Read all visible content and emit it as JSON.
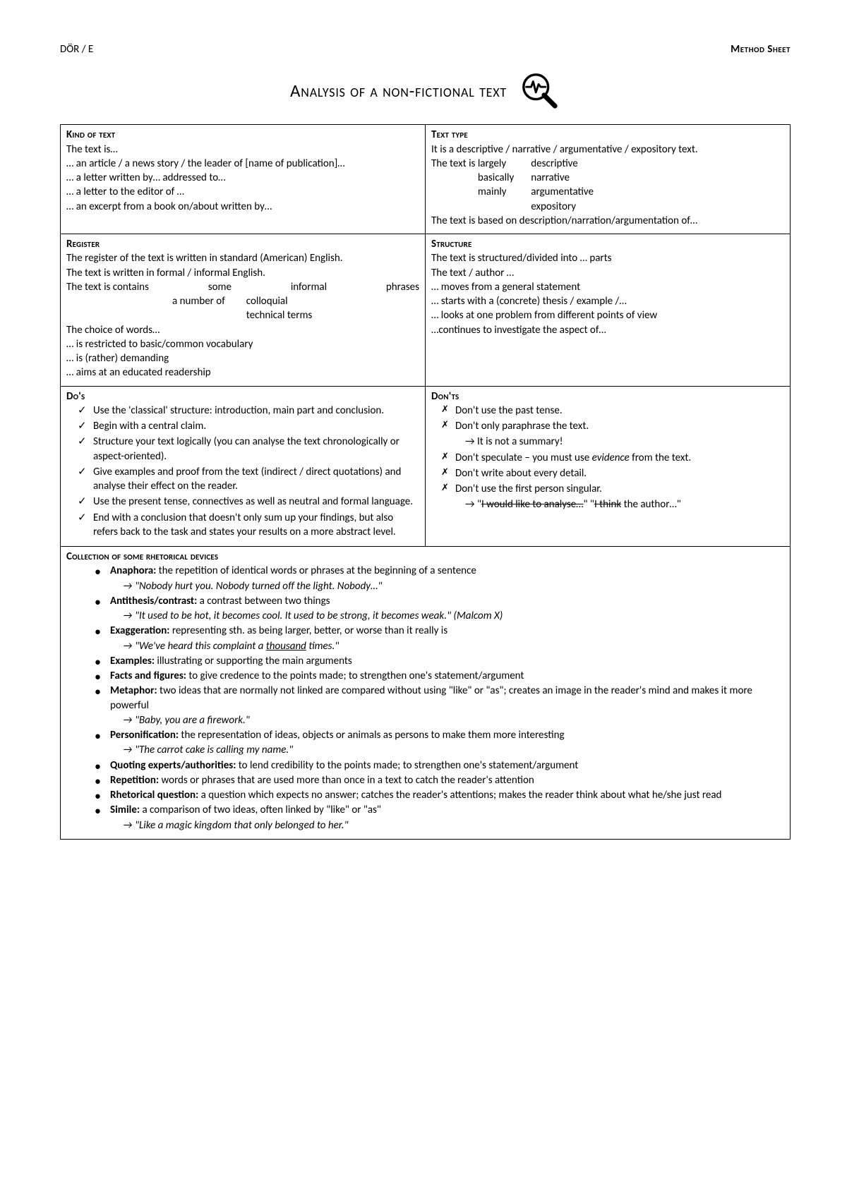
{
  "header": {
    "left": "DÖR / E",
    "right": "Method Sheet"
  },
  "title": "Analysis of a non-fictional text",
  "cells": {
    "kind": {
      "heading": "Kind of text",
      "l1": "The text is…",
      "l2": "… an article / a news story / the leader of [name of publication]…",
      "l3": "… a letter written by… addressed to…",
      "l4": "… a letter to the editor of …",
      "l5": "… an excerpt from a book on/about written by…"
    },
    "type": {
      "heading": "Text type",
      "l1": "It is a descriptive / narrative / argumentative / expository text.",
      "intro": "The text is",
      "c1a": "largely",
      "c1b": "descriptive",
      "c2a": "basically",
      "c2b": "narrative",
      "c3a": "mainly",
      "c3b": "argumentative",
      "c4a": "",
      "c4b": "expository",
      "l3": "The text is based on description/narration/argumentation of…"
    },
    "register": {
      "heading": "Register",
      "l1": "The register of the text is written in standard (American) English.",
      "l2": "The text is written in formal / informal English.",
      "intro": "The text is contains",
      "r1a": "some",
      "r1b": "informal",
      "r1c": "phrases",
      "r2a": "a number of",
      "r2b": "colloquial",
      "r2c": "",
      "r3a": "",
      "r3b": "technical terms",
      "r3c": "",
      "l4": "The choice of words…",
      "l5": "… is restricted to basic/common vocabulary",
      "l6": "… is (rather) demanding",
      "l7": "… aims at an educated readership"
    },
    "structure": {
      "heading": "Structure",
      "l1": "The text is structured/divided into … parts",
      "l2": "The text / author …",
      "l3": "… moves from a general statement",
      "l4": "… starts with a (concrete) thesis / example /…",
      "l5": "… looks at one problem from different points of view",
      "l6": "…continues to investigate the aspect of…"
    },
    "dos": {
      "heading": "Do's",
      "i1": "Use the 'classical' structure: introduction, main part and conclusion.",
      "i2": "Begin with a central claim.",
      "i3": "Structure your text logically (you can analyse the text chronologically or aspect-oriented).",
      "i4": "Give examples and proof from the text (indirect / direct quotations) and analyse their effect on the reader.",
      "i5": "Use the present tense, connectives as well as neutral and formal language.",
      "i6": "End with a conclusion that doesn't only sum up your findings, but also refers back to the task and states your results on a more abstract level."
    },
    "donts": {
      "heading": "Don'ts",
      "i1": "Don't use the past tense.",
      "i2": "Don't only paraphrase the text.",
      "i2b": "→ It is not a summary!",
      "i3a": "Don't speculate – you must use ",
      "i3b": "evidence",
      "i3c": " from the text.",
      "i4": "Don't write about every detail.",
      "i5": "Don't use the first person singular.",
      "i5b_pre": "→ \"",
      "i5b_s1": "I would like to analyse…",
      "i5b_mid": "\" \"",
      "i5b_s2": "I think",
      "i5b_post": " the author…\""
    },
    "devices": {
      "heading": "Collection of some rhetorical devices",
      "d1t": "Anaphora:",
      "d1d": " the repetition of identical words or phrases at the beginning of a sentence",
      "d1e": "→ \"Nobody hurt you. Nobody turned off the light. Nobody…\"",
      "d2t": "Antithesis/contrast:",
      "d2d": " a contrast between two things",
      "d2e": "→ \"It used to be hot, it becomes cool. It used to be strong, it becomes weak.\" (Malcom X)",
      "d3t": "Exaggeration:",
      "d3d": " representing sth. as being larger, better, or worse than it really is",
      "d3e_pre": "→ \"We've heard this complaint a ",
      "d3e_u": "thousand",
      "d3e_post": " times.\"",
      "d4t": "Examples:",
      "d4d": " illustrating or supporting the main arguments",
      "d5t": "Facts and figures:",
      "d5d": "  to give credence to the points made; to strengthen one's statement/argument",
      "d6t": "Metaphor:",
      "d6d": " two ideas that are normally not linked are compared without using \"like\" or \"as\"; creates an image in the reader's mind and makes it more powerful",
      "d6e": "→ \"Baby, you are a firework.\"",
      "d7t": "Personification:",
      "d7d": " the representation of ideas, objects or animals as persons to make them more interesting",
      "d7e": "→ \"The carrot cake is calling my name.\"",
      "d8t": "Quoting experts/authorities:",
      "d8d": " to lend credibility to the points made; to strengthen one's statement/argument",
      "d9t": "Repetition:",
      "d9d": " words or phrases that are used more than once in a text to catch the reader's attention",
      "d10t": "Rhetorical question:",
      "d10d": " a question which expects no answer; catches the reader's attentions; makes the reader think about what he/she just read",
      "d11t": "Simile:",
      "d11d": " a comparison of two ideas, often linked by \"like\" or \"as\"",
      "d11e": "→ \"Like a magic kingdom that only belonged to her.\""
    }
  }
}
